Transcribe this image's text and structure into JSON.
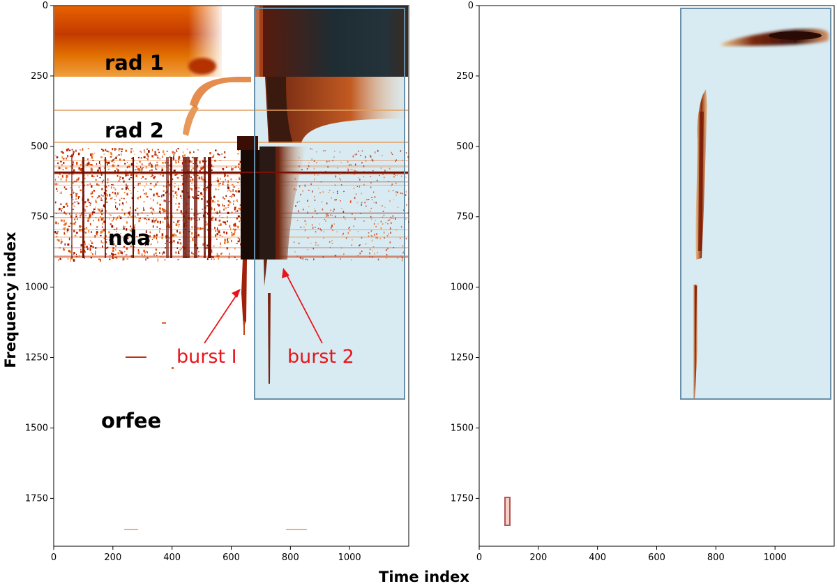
{
  "figure": {
    "ylabel": "Frequency index",
    "xlabel": "Time index"
  },
  "chart_data": [
    {
      "type": "heatmap",
      "panel": "left",
      "xlim": [
        0,
        1200
      ],
      "ylim": [
        1920,
        0
      ],
      "x_ticks": [
        0,
        200,
        400,
        600,
        800,
        1000
      ],
      "y_ticks": [
        0,
        250,
        500,
        750,
        1000,
        1250,
        1500,
        1750
      ],
      "colormap": "gist_heat_r (white → orange → dark red → black)",
      "bands": [
        {
          "label": "rad 1",
          "y_range": [
            0,
            255
          ],
          "label_pos": [
            280,
            205
          ]
        },
        {
          "label": "rad 2",
          "y_range": [
            255,
            510
          ],
          "label_pos": [
            280,
            450
          ]
        },
        {
          "label": "nda",
          "y_range": [
            510,
            910
          ],
          "label_pos": [
            280,
            830
          ]
        },
        {
          "label": "orfee",
          "y_range": [
            910,
            1920
          ],
          "label_pos": [
            280,
            1500
          ]
        }
      ],
      "annotations": [
        {
          "text": "burst I",
          "text_pos": [
            400,
            1250
          ],
          "arrow_to": [
            645,
            1000
          ]
        },
        {
          "text": "burst 2",
          "text_pos": [
            760,
            1250
          ],
          "arrow_to": [
            775,
            925
          ]
        }
      ],
      "boxes": [
        {
          "x": [
            680,
            1190
          ],
          "y": [
            12,
            1400
          ],
          "fill": "#a8d3e4",
          "stroke": "#6a8fa8"
        }
      ]
    },
    {
      "type": "heatmap",
      "panel": "right",
      "xlim": [
        0,
        1200
      ],
      "ylim": [
        1920,
        0
      ],
      "x_ticks": [
        0,
        200,
        400,
        600,
        800,
        1000
      ],
      "y_ticks": [
        0,
        250,
        500,
        750,
        1000,
        1250,
        1500,
        1750
      ],
      "boxes": [
        {
          "x": [
            680,
            1190
          ],
          "y": [
            12,
            1400
          ],
          "fill": "#a8d3e4",
          "stroke": "#6a8fa8"
        },
        {
          "x": [
            88,
            105
          ],
          "y": [
            1750,
            1850
          ],
          "fill": "none",
          "stroke": "#b55555"
        }
      ]
    }
  ],
  "colors": {
    "spine": "#000000",
    "box_fill": "#a8d3e4",
    "box_stroke": "#6a8fa8",
    "annotation": "#e8141a",
    "small_box": "#b55555"
  }
}
